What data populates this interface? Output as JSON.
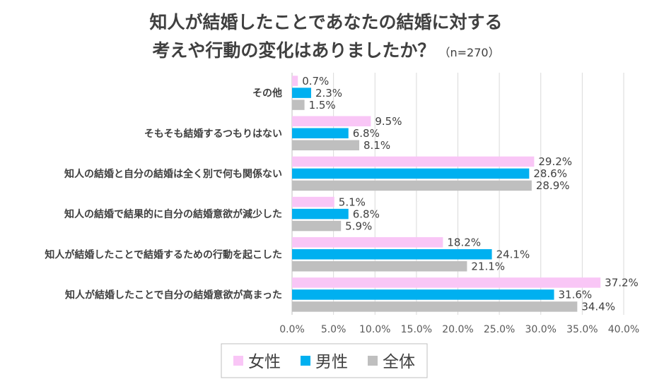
{
  "chart_data": {
    "type": "bar",
    "orientation": "horizontal",
    "title_line1": "知人が結婚したことであなたの結婚に対する",
    "title_line2": "考えや行動の変化はありましたか？",
    "title_note": "（n=270）",
    "categories": [
      "その他",
      "そもそも結婚するつもりはない",
      "知人の結婚と自分の結婚は全く別で何も関係ない",
      "知人の結婚で結果的に自分の結婚意欲が減少した",
      "知人が結婚したことで結婚するための行動を起こした",
      "知人が結婚したことで自分の結婚意欲が高まった"
    ],
    "series": [
      {
        "name": "女性",
        "color": "#f9c6f6",
        "values": [
          0.7,
          9.5,
          29.2,
          5.1,
          18.2,
          37.2
        ],
        "labels": [
          "0.7%",
          "9.5%",
          "29.2%",
          "5.1%",
          "18.2%",
          "37.2%"
        ]
      },
      {
        "name": "男性",
        "color": "#00b0f0",
        "values": [
          2.3,
          6.8,
          28.6,
          6.8,
          24.1,
          31.6
        ],
        "labels": [
          "2.3%",
          "6.8%",
          "28.6%",
          "6.8%",
          "24.1%",
          "31.6%"
        ]
      },
      {
        "name": "全体",
        "color": "#bfbfbf",
        "values": [
          1.5,
          8.1,
          28.9,
          5.9,
          21.1,
          34.4
        ],
        "labels": [
          "1.5%",
          "8.1%",
          "28.9%",
          "5.9%",
          "21.1%",
          "34.4%"
        ]
      }
    ],
    "xlim": [
      0,
      40
    ],
    "xticks": [
      0,
      5,
      10,
      15,
      20,
      25,
      30,
      35,
      40
    ],
    "xtick_labels": [
      "0.0%",
      "5.0%",
      "10.0%",
      "15.0%",
      "20.0%",
      "25.0%",
      "30.0%",
      "35.0%",
      "40.0%"
    ],
    "grid": true,
    "legend_position": "bottom"
  }
}
